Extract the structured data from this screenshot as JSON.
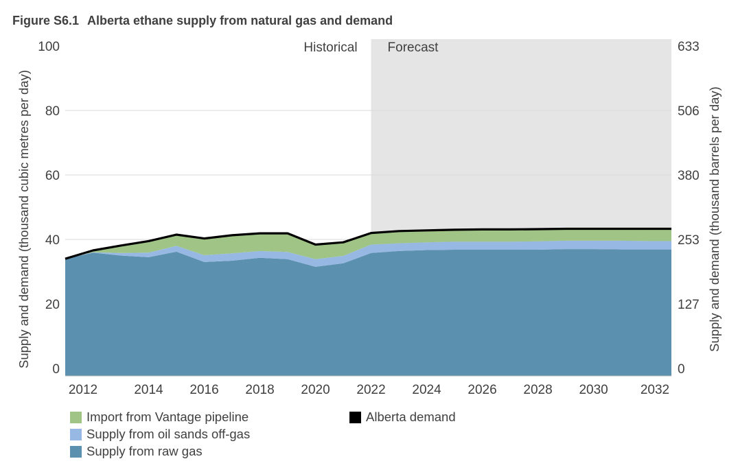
{
  "figure": {
    "label": "Figure S6.1",
    "title": "Alberta ethane supply from natural gas and demand"
  },
  "colors": {
    "raw_gas": "#5b91ae",
    "oil_sands": "#96b8e2",
    "vantage": "#9fc486",
    "demand": "#000000",
    "forecast_shade": "#e5e5e5",
    "grid": "#d9d9d9"
  },
  "chart_data": {
    "type": "area",
    "title": "Alberta ethane supply from natural gas and demand",
    "ylabel_left": "Supply and demand (thousand cubic metres per day)",
    "ylabel_right": "Supply and demand (thousand barrels per day)",
    "ylim": [
      0,
      100
    ],
    "yticks_left": [
      "100",
      "80",
      "60",
      "40",
      "20",
      "0"
    ],
    "yticks_right": [
      "633",
      "506",
      "380",
      "253",
      "127",
      "0"
    ],
    "xlim": [
      2011,
      2032.8
    ],
    "xticks": [
      "2012",
      "2014",
      "2016",
      "2018",
      "2020",
      "2022",
      "2024",
      "2026",
      "2028",
      "2030",
      "2032"
    ],
    "regions": [
      {
        "label": "Historical",
        "range": [
          2011,
          2022
        ]
      },
      {
        "label": "Forecast",
        "range": [
          2022,
          2032.8
        ]
      }
    ],
    "grid": "horizontal",
    "legend_position": "bottom-left",
    "x": [
      2011,
      2012,
      2013,
      2014,
      2015,
      2016,
      2017,
      2018,
      2019,
      2020,
      2021,
      2022,
      2023,
      2024,
      2025,
      2026,
      2027,
      2028,
      2029,
      2030,
      2031,
      2032
    ],
    "series": [
      {
        "name": "Supply from raw gas",
        "kind": "stacked-area",
        "values": [
          34.0,
          35.9,
          35.0,
          34.5,
          36.2,
          33.0,
          33.4,
          34.3,
          33.9,
          31.5,
          32.6,
          35.8,
          36.4,
          36.7,
          36.8,
          36.8,
          36.8,
          36.8,
          37.0,
          37.0,
          36.9,
          36.9
        ]
      },
      {
        "name": "Supply from oil sands off-gas",
        "kind": "stacked-area",
        "values": [
          0.0,
          0.1,
          0.8,
          1.4,
          1.8,
          2.1,
          2.3,
          2.1,
          2.2,
          2.4,
          2.3,
          2.6,
          2.4,
          2.4,
          2.5,
          2.5,
          2.5,
          2.6,
          2.6,
          2.6,
          2.7,
          2.6
        ]
      },
      {
        "name": "Import from Vantage pipeline",
        "kind": "stacked-area",
        "values": [
          0.0,
          0.6,
          2.3,
          3.6,
          3.5,
          5.2,
          5.6,
          5.5,
          5.8,
          4.5,
          4.2,
          3.6,
          3.8,
          3.7,
          3.7,
          3.8,
          3.8,
          3.8,
          3.7,
          3.6,
          3.6,
          3.8
        ]
      },
      {
        "name": "Alberta demand",
        "kind": "line",
        "values": [
          34.0,
          36.6,
          38.1,
          39.5,
          41.5,
          40.3,
          41.3,
          41.9,
          41.9,
          38.4,
          39.1,
          42.0,
          42.6,
          42.8,
          43.0,
          43.1,
          43.1,
          43.2,
          43.3,
          43.3,
          43.3,
          43.3
        ]
      }
    ]
  },
  "legend": [
    {
      "label": "Import from Vantage pipeline",
      "swatch": "#9fc486"
    },
    {
      "label": "Supply from oil sands off-gas",
      "swatch": "#96b8e2"
    },
    {
      "label": "Supply from raw gas",
      "swatch": "#5b91ae"
    },
    {
      "label": "Alberta demand",
      "swatch": "#000000"
    }
  ]
}
